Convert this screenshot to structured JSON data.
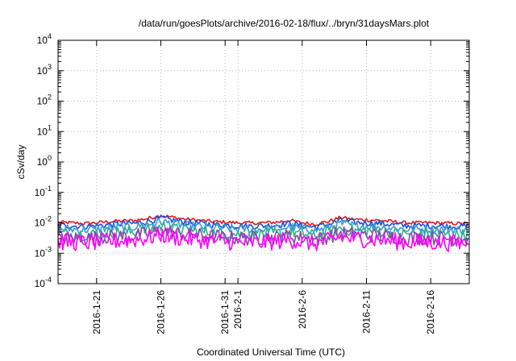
{
  "chart_data": {
    "type": "line",
    "title": "/data/run/goesPlots/archive/2016-02-18/flux/../bryn/31daysMars.plot",
    "xlabel": "Coordinated Universal Time (UTC)",
    "ylabel": "cSv/day",
    "yscale": "log",
    "ylim": [
      0.0001,
      10000
    ],
    "xlim": [
      "2016-01-18",
      "2016-02-19"
    ],
    "grid": true,
    "y_ticks": [
      {
        "base": "10",
        "exp": "4"
      },
      {
        "base": "10",
        "exp": "3"
      },
      {
        "base": "10",
        "exp": "2"
      },
      {
        "base": "10",
        "exp": "1"
      },
      {
        "base": "10",
        "exp": "0"
      },
      {
        "base": "10",
        "exp": "-1"
      },
      {
        "base": "10",
        "exp": "-2"
      },
      {
        "base": "10",
        "exp": "-3"
      },
      {
        "base": "10",
        "exp": "-4"
      }
    ],
    "x_ticks": [
      {
        "date": "2016-01-21",
        "label": "2016-1-21"
      },
      {
        "date": "2016-01-26",
        "label": "2016-1-26"
      },
      {
        "date": "2016-01-31",
        "label": "2016-1-31"
      },
      {
        "date": "2016-02-01",
        "label": "2016-2-1"
      },
      {
        "date": "2016-02-06",
        "label": "2016-2-6"
      },
      {
        "date": "2016-02-11",
        "label": "2016-2-11"
      },
      {
        "date": "2016-02-16",
        "label": "2016-2-16"
      }
    ],
    "x": [
      "2016-01-18",
      "2016-01-19",
      "2016-01-20",
      "2016-01-21",
      "2016-01-22",
      "2016-01-23",
      "2016-01-24",
      "2016-01-25",
      "2016-01-26",
      "2016-01-27",
      "2016-01-28",
      "2016-01-29",
      "2016-01-30",
      "2016-01-31",
      "2016-02-01",
      "2016-02-02",
      "2016-02-03",
      "2016-02-04",
      "2016-02-05",
      "2016-02-06",
      "2016-02-07",
      "2016-02-08",
      "2016-02-09",
      "2016-02-10",
      "2016-02-11",
      "2016-02-12",
      "2016-02-13",
      "2016-02-14",
      "2016-02-15",
      "2016-02-16",
      "2016-02-17",
      "2016-02-18",
      "2016-02-19"
    ],
    "series": [
      {
        "color": "#e41a1c",
        "values": [
          0.0105,
          0.01,
          0.0095,
          0.01,
          0.011,
          0.0115,
          0.012,
          0.014,
          0.0175,
          0.015,
          0.013,
          0.012,
          0.011,
          0.0105,
          0.01,
          0.0098,
          0.01,
          0.0105,
          0.012,
          0.01,
          0.009,
          0.011,
          0.015,
          0.013,
          0.0125,
          0.012,
          0.011,
          0.01,
          0.01,
          0.01,
          0.0098,
          0.0095,
          0.0095
        ]
      },
      {
        "color": "#1f4fd8",
        "values": [
          0.0082,
          0.008,
          0.0076,
          0.008,
          0.0088,
          0.0092,
          0.0096,
          0.0112,
          0.014,
          0.012,
          0.0104,
          0.0096,
          0.0088,
          0.0084,
          0.008,
          0.0078,
          0.008,
          0.0084,
          0.0096,
          0.008,
          0.0072,
          0.0088,
          0.012,
          0.0104,
          0.01,
          0.0096,
          0.0088,
          0.008,
          0.008,
          0.008,
          0.0078,
          0.0076,
          0.0076
        ]
      },
      {
        "color": "#3a9bdc",
        "values": [
          0.0064,
          0.0062,
          0.0059,
          0.0062,
          0.0068,
          0.0071,
          0.0074,
          0.0087,
          0.0108,
          0.0093,
          0.0081,
          0.0074,
          0.0068,
          0.0065,
          0.0062,
          0.0061,
          0.0062,
          0.0065,
          0.0074,
          0.0062,
          0.0056,
          0.0068,
          0.0093,
          0.0081,
          0.0078,
          0.0074,
          0.0068,
          0.0062,
          0.0062,
          0.0062,
          0.0061,
          0.0059,
          0.0059
        ]
      },
      {
        "color": "#2bb38a",
        "values": [
          0.0045,
          0.0043,
          0.0041,
          0.0043,
          0.0047,
          0.0049,
          0.0052,
          0.006,
          0.0075,
          0.0065,
          0.0056,
          0.0052,
          0.0047,
          0.0045,
          0.0043,
          0.0042,
          0.0043,
          0.0045,
          0.0052,
          0.0043,
          0.0039,
          0.0047,
          0.0065,
          0.0056,
          0.0054,
          0.0052,
          0.0047,
          0.0043,
          0.0043,
          0.0043,
          0.0042,
          0.0041,
          0.0041
        ]
      },
      {
        "color": "#8e44ad",
        "values": [
          0.0033,
          0.0032,
          0.003,
          0.0032,
          0.0035,
          0.0036,
          0.0038,
          0.0044,
          0.0055,
          0.0047,
          0.0041,
          0.0038,
          0.0035,
          0.0033,
          0.0032,
          0.0031,
          0.0032,
          0.0033,
          0.0038,
          0.0032,
          0.0028,
          0.0035,
          0.0047,
          0.0041,
          0.0039,
          0.0038,
          0.0035,
          0.0032,
          0.0032,
          0.0032,
          0.0031,
          0.003,
          0.003
        ]
      },
      {
        "color": "#ff00ff",
        "values": [
          0.0024,
          0.0023,
          0.0022,
          0.0023,
          0.0025,
          0.0026,
          0.0028,
          0.0032,
          0.004,
          0.0034,
          0.003,
          0.0028,
          0.0025,
          0.0024,
          0.0023,
          0.0022,
          0.0023,
          0.0024,
          0.0028,
          0.0023,
          0.0021,
          0.0025,
          0.0034,
          0.003,
          0.0029,
          0.0028,
          0.0025,
          0.0023,
          0.0023,
          0.0023,
          0.0022,
          0.0022,
          0.0022
        ]
      }
    ]
  }
}
